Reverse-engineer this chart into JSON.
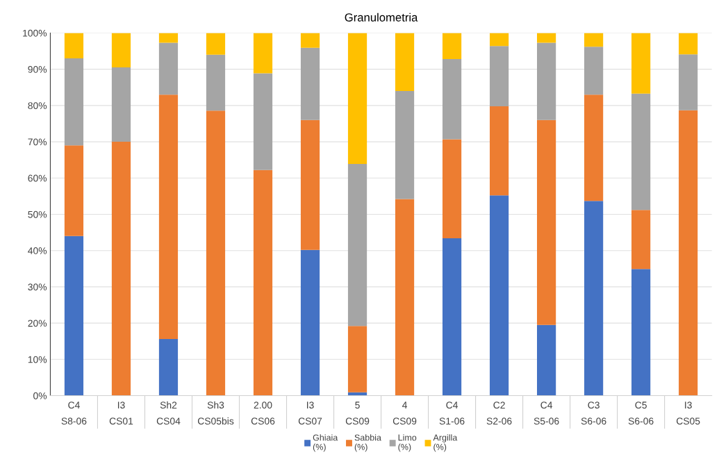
{
  "chart_data": {
    "type": "bar",
    "title": "Granulometria",
    "stacked": true,
    "grid": "y",
    "legend": "bottom",
    "categories": [
      "C4\nS8-06",
      "I3\nCS01",
      "Sh2\nCS04",
      "Sh3\nCS05bis",
      "2.00\nCS06",
      "I3\nCS07",
      "5\nCS09",
      "4\nCS09",
      "C4\nS1-06",
      "C2\nS2-06",
      "C4\nS5-06",
      "C3\nS6-06",
      "C5\nS6-06",
      "I3\nCS05"
    ],
    "ylim": [
      0,
      100
    ],
    "yticks": [
      {
        "value": 0,
        "label": "0%"
      },
      {
        "value": 10,
        "label": "10%"
      },
      {
        "value": 20,
        "label": "20%"
      },
      {
        "value": 30,
        "label": "30%"
      },
      {
        "value": 40,
        "label": "40%"
      },
      {
        "value": 50,
        "label": "50%"
      },
      {
        "value": 60,
        "label": "60%"
      },
      {
        "value": 70,
        "label": "70%"
      },
      {
        "value": 80,
        "label": "80%"
      },
      {
        "value": 90,
        "label": "90%"
      },
      {
        "value": 100,
        "label": "100%"
      }
    ],
    "series": [
      {
        "name": "Ghiaia\n(%)",
        "color": "#4472c4",
        "values": [
          44,
          0,
          15.6,
          0,
          0,
          40.2,
          0.9,
          0,
          43.4,
          55.2,
          19.5,
          53.7,
          34.9,
          0
        ]
      },
      {
        "name": "Sabbia\n(%)",
        "color": "#ed7d31",
        "values": [
          25,
          70,
          67.4,
          78.6,
          62.2,
          35.8,
          18.3,
          54.2,
          27.3,
          24.6,
          56.5,
          29.3,
          16.3,
          78.7
        ]
      },
      {
        "name": "Limo\n(%)",
        "color": "#a5a5a5",
        "values": [
          24,
          20.5,
          14.3,
          15.4,
          26.7,
          19.9,
          44.7,
          29.8,
          22.1,
          16.6,
          21.3,
          13.2,
          32.1,
          15.4
        ]
      },
      {
        "name": "Argilla\n(%)",
        "color": "#ffc000",
        "values": [
          7,
          9.5,
          2.7,
          6.0,
          11.1,
          4.1,
          36.1,
          16.0,
          7.2,
          3.6,
          2.7,
          3.8,
          16.7,
          5.9
        ]
      }
    ]
  }
}
